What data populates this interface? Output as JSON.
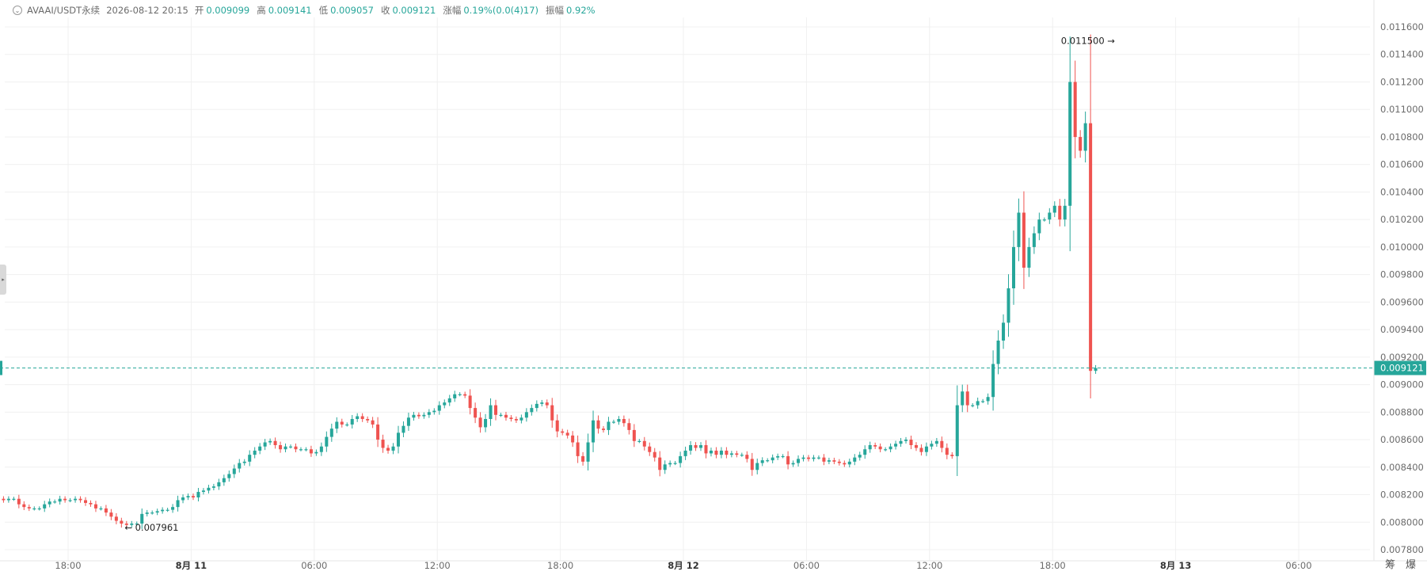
{
  "header": {
    "dropdown_icon": "chevron-down-icon",
    "pair": "AVAAI/USDT永续",
    "timestamp": "2026-08-12 20:15",
    "open_label": "开",
    "open": "0.009099",
    "high_label": "高",
    "high": "0.009141",
    "low_label": "低",
    "low": "0.009057",
    "close_label": "收",
    "close": "0.009121",
    "change_label": "涨幅",
    "change": "0.19%(0.0(4)17)",
    "amplitude_label": "振幅",
    "amplitude": "0.92%"
  },
  "colors": {
    "up": "#26a69a",
    "down": "#ef5350",
    "grid": "#f0f0f0",
    "axis_text": "#6b6b6b",
    "last_price_tag": "#26a69a"
  },
  "corner_buttons": [
    "筹",
    "爆"
  ],
  "chart_data": {
    "type": "candlestick",
    "price_axis": {
      "min": 0.0078,
      "max": 0.0116,
      "ticks": [
        "0.011600",
        "0.011400",
        "0.011200",
        "0.011000",
        "0.010800",
        "0.010600",
        "0.010400",
        "0.010200",
        "0.010000",
        "0.009800",
        "0.009600",
        "0.009400",
        "0.009200",
        "0.009000",
        "0.008800",
        "0.008600",
        "0.008400",
        "0.008200",
        "0.008000",
        "0.007800"
      ],
      "tick_values": [
        0.0116,
        0.0114,
        0.0112,
        0.011,
        0.0108,
        0.0106,
        0.0104,
        0.0102,
        0.01,
        0.0098,
        0.0096,
        0.0094,
        0.0092,
        0.009,
        0.0088,
        0.0086,
        0.0084,
        0.0082,
        0.008,
        0.0078
      ]
    },
    "time_axis": {
      "labels": [
        "18:00",
        "8月 11",
        "06:00",
        "12:00",
        "18:00",
        "8月 12",
        "06:00",
        "12:00",
        "18:00",
        "8月 13",
        "06:00"
      ],
      "bold": [
        false,
        true,
        false,
        false,
        false,
        true,
        false,
        false,
        false,
        true,
        false
      ],
      "positions": [
        10,
        16,
        22,
        28,
        34,
        40,
        46,
        52,
        58,
        64,
        70
      ],
      "total_hours": 73.6
    },
    "last_price": {
      "value": 0.009121,
      "label": "0.009121"
    },
    "max_marker": {
      "value": 0.0115,
      "label": "0.011500"
    },
    "min_marker": {
      "value": 0.007961,
      "label": "0.007961"
    },
    "closes": [
      0.00812,
      0.00815,
      0.00818,
      0.00817,
      0.00816,
      0.00817,
      0.00818,
      0.00817,
      0.00817,
      0.00816,
      0.00817,
      0.00817,
      0.00813,
      0.00811,
      0.0081,
      0.0081,
      0.0081,
      0.00813,
      0.00815,
      0.00815,
      0.00817,
      0.00816,
      0.00816,
      0.00817,
      0.00816,
      0.00814,
      0.00813,
      0.0081,
      0.0081,
      0.00807,
      0.00804,
      0.00801,
      0.00799,
      0.00798,
      0.00799,
      0.00799,
      0.00806,
      0.00807,
      0.00807,
      0.00808,
      0.00809,
      0.00809,
      0.00811,
      0.00816,
      0.00818,
      0.00819,
      0.00818,
      0.00822,
      0.00823,
      0.00825,
      0.00826,
      0.00829,
      0.00832,
      0.00835,
      0.00839,
      0.00843,
      0.00844,
      0.00849,
      0.00852,
      0.00855,
      0.00858,
      0.00859,
      0.00856,
      0.00853,
      0.00855,
      0.00855,
      0.00853,
      0.00853,
      0.00853,
      0.0085,
      0.00851,
      0.00855,
      0.00862,
      0.00868,
      0.00873,
      0.00871,
      0.00871,
      0.00875,
      0.00877,
      0.00875,
      0.00874,
      0.00871,
      0.0086,
      0.00854,
      0.00852,
      0.00855,
      0.00865,
      0.0087,
      0.00876,
      0.00878,
      0.00877,
      0.00878,
      0.0088,
      0.00881,
      0.00885,
      0.00887,
      0.0089,
      0.00893,
      0.00893,
      0.00892,
      0.00883,
      0.00876,
      0.00869,
      0.00875,
      0.00885,
      0.00878,
      0.00878,
      0.00876,
      0.00875,
      0.00874,
      0.00876,
      0.0088,
      0.00883,
      0.00886,
      0.00887,
      0.00885,
      0.00874,
      0.00866,
      0.00865,
      0.00863,
      0.00858,
      0.00848,
      0.00844,
      0.00858,
      0.00874,
      0.00868,
      0.00867,
      0.00873,
      0.00873,
      0.00875,
      0.00872,
      0.00867,
      0.00859,
      0.00859,
      0.00855,
      0.00851,
      0.00847,
      0.00838,
      0.00842,
      0.00843,
      0.00843,
      0.00848,
      0.00852,
      0.00856,
      0.00854,
      0.00856,
      0.0085,
      0.00852,
      0.00849,
      0.00852,
      0.00849,
      0.0085,
      0.00849,
      0.00849,
      0.00846,
      0.00838,
      0.00843,
      0.00845,
      0.00845,
      0.00847,
      0.00848,
      0.00848,
      0.00842,
      0.00843,
      0.00846,
      0.00847,
      0.00846,
      0.00847,
      0.00847,
      0.00844,
      0.00845,
      0.00844,
      0.00843,
      0.00842,
      0.00844,
      0.00847,
      0.00849,
      0.00853,
      0.00856,
      0.00855,
      0.00853,
      0.00853,
      0.00855,
      0.00857,
      0.00859,
      0.0086,
      0.00856,
      0.00854,
      0.00851,
      0.00855,
      0.00857,
      0.00859,
      0.00854,
      0.00849,
      0.00848,
      0.00885,
      0.00895,
      0.00885,
      0.00885,
      0.00888,
      0.00888,
      0.00891,
      0.00915,
      0.00932,
      0.00945,
      0.0097,
      0.01,
      0.01025,
      0.00985,
      0.01,
      0.0101,
      0.0102,
      0.0102,
      0.01025,
      0.0103,
      0.0102,
      0.0103,
      0.0112,
      0.0108,
      0.0107,
      0.0109,
      0.0091,
      0.00912
    ],
    "flat_hours": 8
  }
}
